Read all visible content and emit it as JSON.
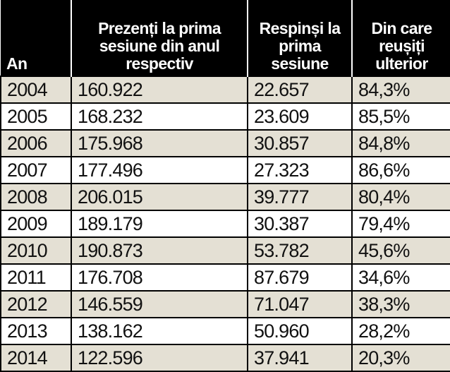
{
  "table": {
    "headers": [
      "An",
      "Prezenți la prima sesiune din anul respectiv",
      "Respinși la prima sesiune",
      "Din care reușiți ulterior"
    ],
    "rows": [
      [
        "2004",
        "160.922",
        "22.657",
        "84,3%"
      ],
      [
        "2005",
        "168.232",
        "23.609",
        "85,5%"
      ],
      [
        "2006",
        "175.968",
        "30.857",
        "84,8%"
      ],
      [
        "2007",
        "177.496",
        "27.323",
        "86,6%"
      ],
      [
        "2008",
        "206.015",
        "39.777",
        "80,4%"
      ],
      [
        "2009",
        "189.179",
        "30.387",
        "79,4%"
      ],
      [
        "2010",
        "190.873",
        "53.782",
        "45,6%"
      ],
      [
        "2011",
        "176.708",
        "87.679",
        "34,6%"
      ],
      [
        "2012",
        "146.559",
        "71.047",
        "38,3%"
      ],
      [
        "2013",
        "138.162",
        "50.960",
        "28,2%"
      ],
      [
        "2014",
        "122.596",
        "37.941",
        "20,3%"
      ]
    ]
  }
}
